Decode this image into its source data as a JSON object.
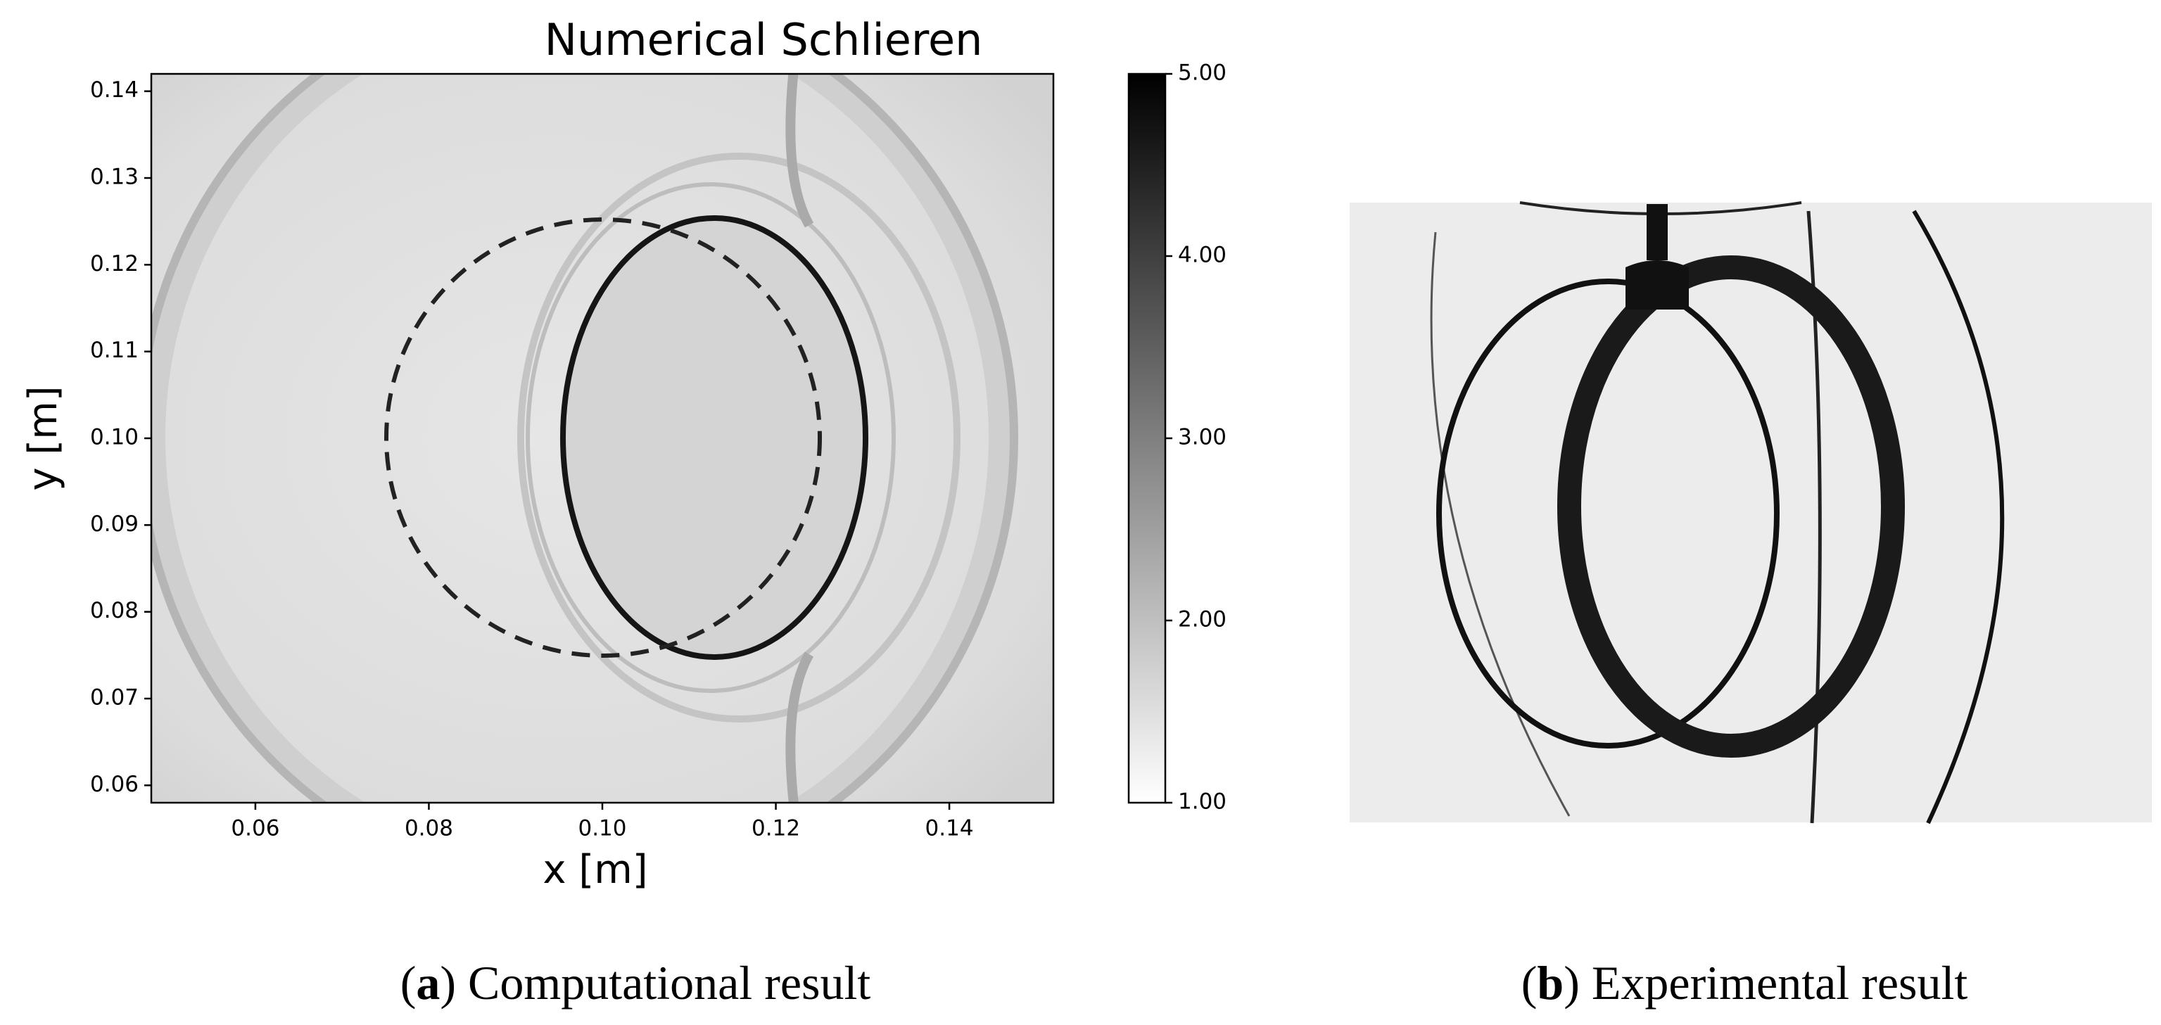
{
  "chart_data": {
    "type": "image",
    "title": "Numerical Schlieren",
    "xlabel": "x [m]",
    "ylabel": "y [m]",
    "xlim": [
      0.048,
      0.152
    ],
    "ylim": [
      0.058,
      0.142
    ],
    "xticks": [
      0.06,
      0.08,
      {
        "value": 0.1,
        "label": "0.10"
      },
      0.12,
      0.14
    ],
    "yticks": [
      0.06,
      0.07,
      0.08,
      0.09,
      {
        "value": 0.1,
        "label": "0.10"
      },
      0.11,
      0.12,
      0.13,
      0.14
    ],
    "colorbar": {
      "lim": [
        1,
        5
      ],
      "colors": [
        "#ffffff",
        "#000000"
      ],
      "ticks": [
        {
          "value": 1,
          "label": "1.00"
        },
        {
          "value": 2,
          "label": "2.00"
        },
        {
          "value": 3,
          "label": "3.00"
        },
        {
          "value": 4,
          "label": "4.00"
        },
        {
          "value": 5,
          "label": "5.00"
        }
      ]
    }
  },
  "captions": [
    {
      "parts": [
        "(",
        "a",
        ") Computational result"
      ]
    },
    {
      "parts": [
        "(",
        "b",
        ") Experimental result"
      ]
    }
  ]
}
